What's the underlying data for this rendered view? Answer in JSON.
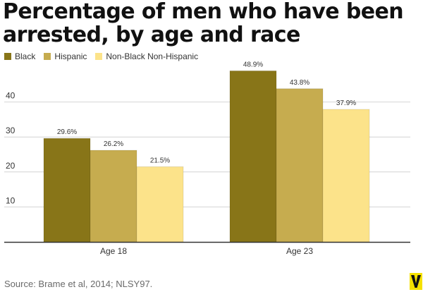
{
  "title": "Percentage of men who have been arrested, by age and race",
  "legend": [
    {
      "label": "Black",
      "color": "#887518"
    },
    {
      "label": "Hispanic",
      "color": "#c6ac4f"
    },
    {
      "label": "Non-Black Non-Hispanic",
      "color": "#fce38a"
    }
  ],
  "chart_data": {
    "type": "bar",
    "title": "Percentage of men who have been arrested, by age and race",
    "xlabel": "",
    "ylabel": "",
    "ylim": [
      0,
      50
    ],
    "yticks": [
      10,
      20,
      30,
      40
    ],
    "grid": true,
    "categories": [
      "Age 18",
      "Age 23"
    ],
    "series": [
      {
        "name": "Black",
        "values": [
          29.6,
          48.9
        ],
        "labels": [
          "29.6%",
          "48.9%"
        ]
      },
      {
        "name": "Hispanic",
        "values": [
          26.2,
          43.8
        ],
        "labels": [
          "26.2%",
          "43.8%"
        ]
      },
      {
        "name": "Non-Black Non-Hispanic",
        "values": [
          21.5,
          37.9
        ],
        "labels": [
          "21.5%",
          "37.9%"
        ]
      }
    ]
  },
  "source": "Source: Brame et al, 2014; NLSY97.",
  "logo_icon": "vox-v-logo"
}
